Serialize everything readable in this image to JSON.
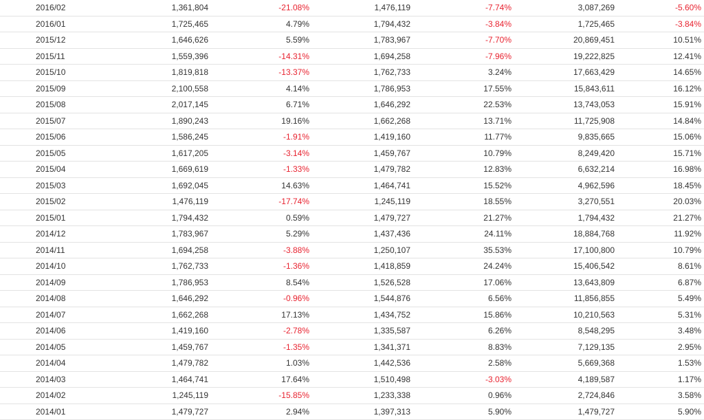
{
  "colors": {
    "text": "#333333",
    "negative": "#e8222f",
    "row_border": "#e3e3e3"
  },
  "rows": [
    [
      "2016/02",
      "1,361,804",
      "-21.08%",
      "1,476,119",
      "-7.74%",
      "3,087,269",
      "-5.60%"
    ],
    [
      "2016/01",
      "1,725,465",
      "4.79%",
      "1,794,432",
      "-3.84%",
      "1,725,465",
      "-3.84%"
    ],
    [
      "2015/12",
      "1,646,626",
      "5.59%",
      "1,783,967",
      "-7.70%",
      "20,869,451",
      "10.51%"
    ],
    [
      "2015/11",
      "1,559,396",
      "-14.31%",
      "1,694,258",
      "-7.96%",
      "19,222,825",
      "12.41%"
    ],
    [
      "2015/10",
      "1,819,818",
      "-13.37%",
      "1,762,733",
      "3.24%",
      "17,663,429",
      "14.65%"
    ],
    [
      "2015/09",
      "2,100,558",
      "4.14%",
      "1,786,953",
      "17.55%",
      "15,843,611",
      "16.12%"
    ],
    [
      "2015/08",
      "2,017,145",
      "6.71%",
      "1,646,292",
      "22.53%",
      "13,743,053",
      "15.91%"
    ],
    [
      "2015/07",
      "1,890,243",
      "19.16%",
      "1,662,268",
      "13.71%",
      "11,725,908",
      "14.84%"
    ],
    [
      "2015/06",
      "1,586,245",
      "-1.91%",
      "1,419,160",
      "11.77%",
      "9,835,665",
      "15.06%"
    ],
    [
      "2015/05",
      "1,617,205",
      "-3.14%",
      "1,459,767",
      "10.79%",
      "8,249,420",
      "15.71%"
    ],
    [
      "2015/04",
      "1,669,619",
      "-1.33%",
      "1,479,782",
      "12.83%",
      "6,632,214",
      "16.98%"
    ],
    [
      "2015/03",
      "1,692,045",
      "14.63%",
      "1,464,741",
      "15.52%",
      "4,962,596",
      "18.45%"
    ],
    [
      "2015/02",
      "1,476,119",
      "-17.74%",
      "1,245,119",
      "18.55%",
      "3,270,551",
      "20.03%"
    ],
    [
      "2015/01",
      "1,794,432",
      "0.59%",
      "1,479,727",
      "21.27%",
      "1,794,432",
      "21.27%"
    ],
    [
      "2014/12",
      "1,783,967",
      "5.29%",
      "1,437,436",
      "24.11%",
      "18,884,768",
      "11.92%"
    ],
    [
      "2014/11",
      "1,694,258",
      "-3.88%",
      "1,250,107",
      "35.53%",
      "17,100,800",
      "10.79%"
    ],
    [
      "2014/10",
      "1,762,733",
      "-1.36%",
      "1,418,859",
      "24.24%",
      "15,406,542",
      "8.61%"
    ],
    [
      "2014/09",
      "1,786,953",
      "8.54%",
      "1,526,528",
      "17.06%",
      "13,643,809",
      "6.87%"
    ],
    [
      "2014/08",
      "1,646,292",
      "-0.96%",
      "1,544,876",
      "6.56%",
      "11,856,855",
      "5.49%"
    ],
    [
      "2014/07",
      "1,662,268",
      "17.13%",
      "1,434,752",
      "15.86%",
      "10,210,563",
      "5.31%"
    ],
    [
      "2014/06",
      "1,419,160",
      "-2.78%",
      "1,335,587",
      "6.26%",
      "8,548,295",
      "3.48%"
    ],
    [
      "2014/05",
      "1,459,767",
      "-1.35%",
      "1,341,371",
      "8.83%",
      "7,129,135",
      "2.95%"
    ],
    [
      "2014/04",
      "1,479,782",
      "1.03%",
      "1,442,536",
      "2.58%",
      "5,669,368",
      "1.53%"
    ],
    [
      "2014/03",
      "1,464,741",
      "17.64%",
      "1,510,498",
      "-3.03%",
      "4,189,587",
      "1.17%"
    ],
    [
      "2014/02",
      "1,245,119",
      "-15.85%",
      "1,233,338",
      "0.96%",
      "2,724,846",
      "3.58%"
    ],
    [
      "2014/01",
      "1,479,727",
      "2.94%",
      "1,397,313",
      "5.90%",
      "1,479,727",
      "5.90%"
    ]
  ]
}
